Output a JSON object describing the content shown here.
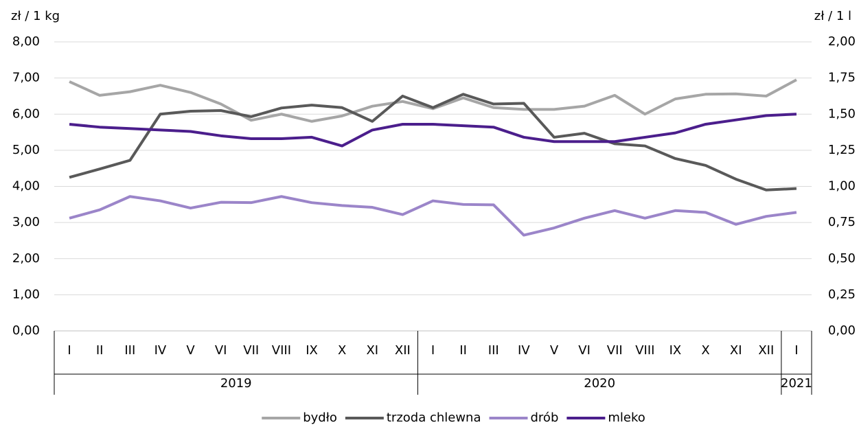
{
  "chart_data": {
    "type": "line",
    "y_label": "zł / 1 kg",
    "y2_label": "zł / 1 l",
    "categories": [
      "I",
      "II",
      "III",
      "IV",
      "V",
      "VI",
      "VII",
      "VIII",
      "IX",
      "X",
      "XI",
      "XII",
      "I",
      "II",
      "III",
      "IV",
      "V",
      "VI",
      "VII",
      "VIII",
      "IX",
      "X",
      "XI",
      "XII",
      "I"
    ],
    "groups": [
      {
        "name": "2019",
        "size": 12
      },
      {
        "name": "2020",
        "size": 12
      },
      {
        "name": "2021",
        "size": 1
      }
    ],
    "ylim": [
      0,
      8
    ],
    "yticks": [
      {
        "value": 0,
        "label": "0,00"
      },
      {
        "value": 1,
        "label": "1,00"
      },
      {
        "value": 2,
        "label": "2,00"
      },
      {
        "value": 3,
        "label": "3,00"
      },
      {
        "value": 4,
        "label": "4,00"
      },
      {
        "value": 5,
        "label": "5,00"
      },
      {
        "value": 6,
        "label": "6,00"
      },
      {
        "value": 7,
        "label": "7,00"
      },
      {
        "value": 8,
        "label": "8,00"
      }
    ],
    "y2lim": [
      0,
      2
    ],
    "y2ticks": [
      {
        "value": 0,
        "label": "0,00"
      },
      {
        "value": 0.25,
        "label": "0,25"
      },
      {
        "value": 0.5,
        "label": "0,50"
      },
      {
        "value": 0.75,
        "label": "0,75"
      },
      {
        "value": 1,
        "label": "1,00"
      },
      {
        "value": 1.25,
        "label": "1,25"
      },
      {
        "value": 1.5,
        "label": "1,50"
      },
      {
        "value": 1.75,
        "label": "1,75"
      },
      {
        "value": 2,
        "label": "2,00"
      }
    ],
    "grid": true,
    "legend": "bottom",
    "series": [
      {
        "name": "bydło",
        "color": "#a6a6a6",
        "values": [
          6.9,
          6.52,
          6.62,
          6.8,
          6.6,
          6.28,
          5.83,
          6.0,
          5.8,
          5.95,
          6.22,
          6.35,
          6.15,
          6.45,
          6.18,
          6.13,
          6.13,
          6.22,
          6.52,
          6.0,
          6.42,
          6.55,
          6.56,
          6.5,
          6.95
        ]
      },
      {
        "name": "trzoda chlewna",
        "color": "#595959",
        "values": [
          4.25,
          4.48,
          4.72,
          6.0,
          6.08,
          6.1,
          5.93,
          6.17,
          6.25,
          6.18,
          5.8,
          6.5,
          6.18,
          6.55,
          6.28,
          6.3,
          5.36,
          5.47,
          5.18,
          5.12,
          4.77,
          4.58,
          4.2,
          3.9,
          3.94
        ]
      },
      {
        "name": "drób",
        "color": "#9b85c9",
        "values": [
          3.12,
          3.35,
          3.72,
          3.6,
          3.4,
          3.56,
          3.55,
          3.72,
          3.55,
          3.47,
          3.42,
          3.22,
          3.6,
          3.5,
          3.49,
          2.65,
          2.85,
          3.12,
          3.33,
          3.12,
          3.33,
          3.28,
          2.95,
          3.17,
          3.28
        ]
      },
      {
        "name": "mleko",
        "color": "#4b1e8c",
        "axis": "y2",
        "values": [
          1.43,
          1.41,
          1.4,
          1.39,
          1.38,
          1.35,
          1.33,
          1.33,
          1.34,
          1.28,
          1.39,
          1.43,
          1.43,
          1.42,
          1.41,
          1.34,
          1.31,
          1.31,
          1.31,
          1.34,
          1.37,
          1.43,
          1.46,
          1.49,
          1.5
        ]
      }
    ]
  }
}
